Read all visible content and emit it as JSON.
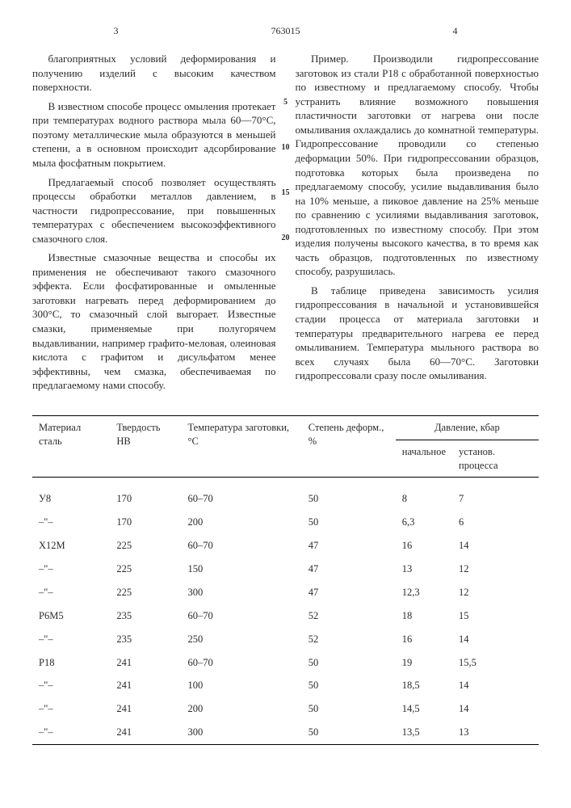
{
  "header": {
    "page_left": "3",
    "docnum": "763015",
    "page_right": "4"
  },
  "linenums": {
    "l5": "5",
    "l10": "10",
    "l15": "15",
    "l20": "20"
  },
  "text": {
    "p1": "благоприятных условий деформирования и получению изделий с высоким качеством поверхности.",
    "p2": "В известном способе процесс омыления протекает при температурах водного раствора мыла 60—70°С, поэтому металлические мыла образуются в меньшей степени, а в основном происходит адсорбирование мыла фосфатным покрытием.",
    "p3": "Предлагаемый способ позволяет осуществлять процессы обработки металлов давлением, в частности гидропрессование, при повышенных температурах с обеспечением высокоэффективного смазочного слоя.",
    "p4": "Известные смазочные вещества и способы их применения не обеспечивают такого смазочного эффекта. Если фосфатированные и омыленные заготовки нагревать перед деформированием до 300°С, то смазочный слой выгорает. Известные смазки, применяемые при полугорячем выдавливании, например графито-меловая, олеиновая кислота с графитом и дисульфатом менее эффективны, чем смазка, обеспечиваемая по предлагаемому нами способу.",
    "p5": "Пример. Производили гидропрессование заготовок из стали Р18 с обработанной поверхностью по известному и предлагаемому способу. Чтобы устранить влияние возможного повышения пластичности заготовки от нагрева они после омыливания охлаждались до комнатной температуры. Гидропрессование проводили со степенью деформации 50%. При гидропрессовании образцов, подготовка которых была произведена по предлагаемому способу, усилие выдавливания было на 10% меньше, а пиковое давление на 25% меньше по сравнению с усилиями выдавливания заготовок, подготовленных по известному способу. При этом изделия получены высокого качества, в то время как часть образцов, подготовленных по известному способу, разрушилась.",
    "p6": "В таблице приведена зависимость усилия гидропрессования в начальной и установившейся стадии процесса от материала заготовки и температуры предварительного нагрева ее перед омыливанием. Температура мыльного раствора во всех случаях была 60—70°С. Заготовки гидропрессовали сразу после омыливания."
  },
  "table": {
    "headers": {
      "material": "Материал сталь",
      "hardness": "Твердость НВ",
      "temp": "Температура заготовки, °С",
      "deform": "Степень деформ., %",
      "pressure_group": "Давление, кбар",
      "p_initial": "начальное",
      "p_steady": "установ. процесса"
    },
    "rows": [
      {
        "mat": "У8",
        "hb": "170",
        "temp": "60–70",
        "def": "50",
        "p0": "8",
        "p1": "7"
      },
      {
        "mat": "–\"–",
        "hb": "170",
        "temp": "200",
        "def": "50",
        "p0": "6,3",
        "p1": "6"
      },
      {
        "mat": "Х12М",
        "hb": "225",
        "temp": "60–70",
        "def": "47",
        "p0": "16",
        "p1": "14"
      },
      {
        "mat": "–\"–",
        "hb": "225",
        "temp": "150",
        "def": "47",
        "p0": "13",
        "p1": "12"
      },
      {
        "mat": "–\"–",
        "hb": "225",
        "temp": "300",
        "def": "47",
        "p0": "12,3",
        "p1": "12"
      },
      {
        "mat": "Р6М5",
        "hb": "235",
        "temp": "60–70",
        "def": "52",
        "p0": "18",
        "p1": "15"
      },
      {
        "mat": "–\"–",
        "hb": "235",
        "temp": "250",
        "def": "52",
        "p0": "16",
        "p1": "14"
      },
      {
        "mat": "Р18",
        "hb": "241",
        "temp": "60–70",
        "def": "50",
        "p0": "19",
        "p1": "15,5"
      },
      {
        "mat": "–\"–",
        "hb": "241",
        "temp": "100",
        "def": "50",
        "p0": "18,5",
        "p1": "14"
      },
      {
        "mat": "–\"–",
        "hb": "241",
        "temp": "200",
        "def": "50",
        "p0": "14,5",
        "p1": "14"
      },
      {
        "mat": "–\"–",
        "hb": "241",
        "temp": "300",
        "def": "50",
        "p0": "13,5",
        "p1": "13"
      }
    ]
  }
}
